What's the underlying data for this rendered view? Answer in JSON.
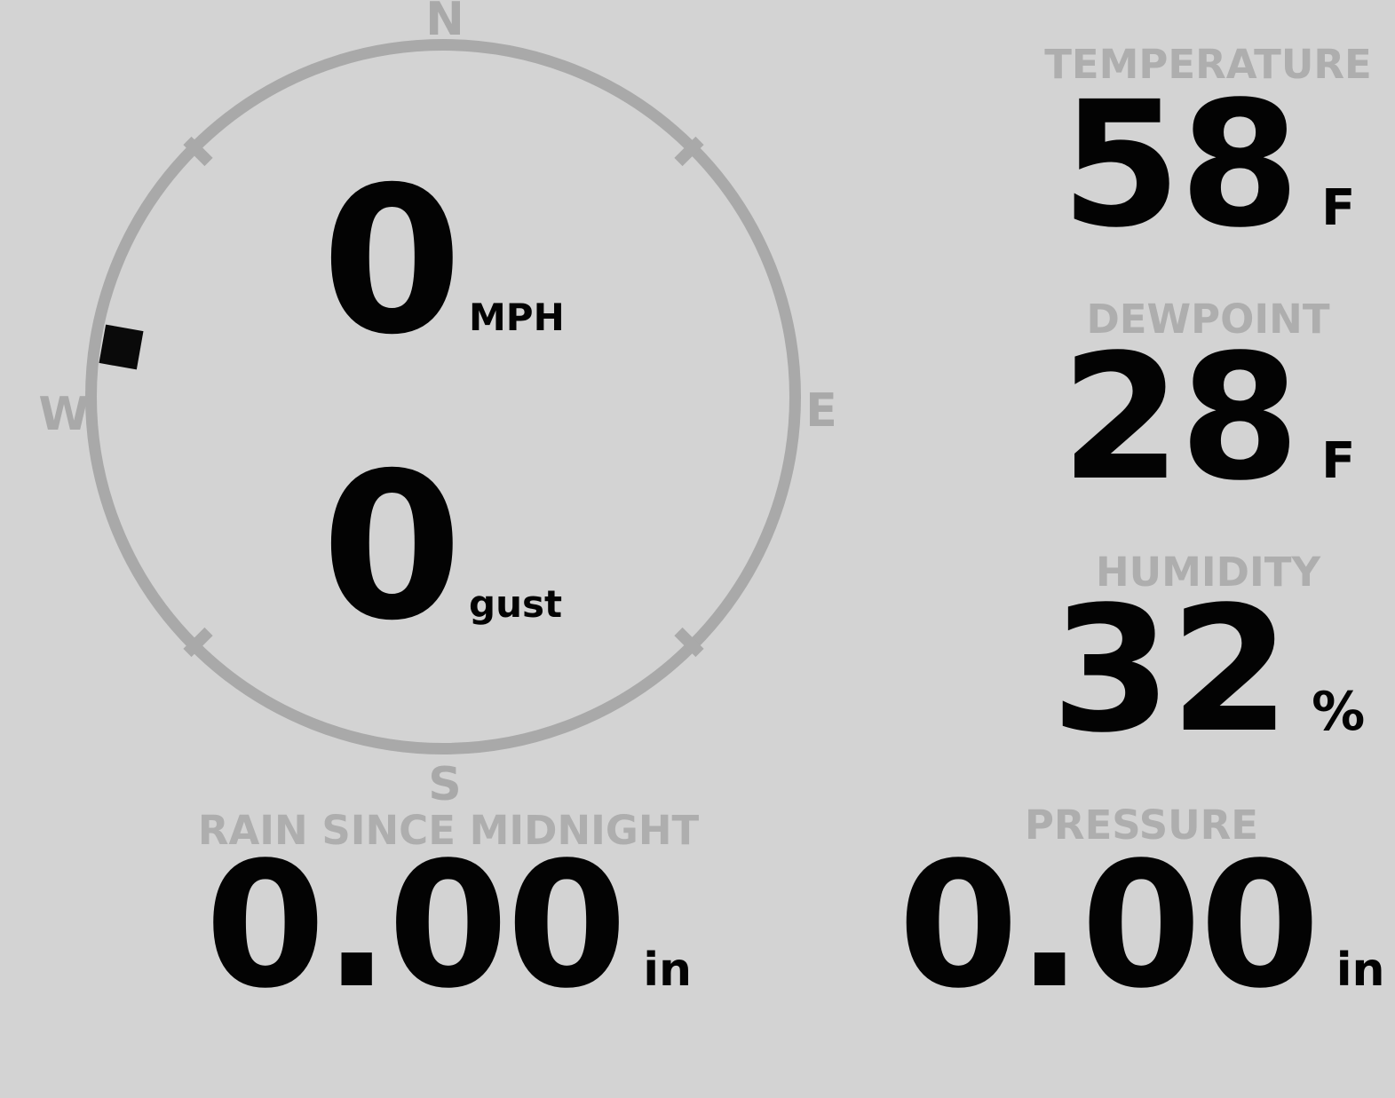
{
  "theme": {
    "background": "#d3d3d3",
    "compass_gray": "#a9a9a9",
    "label_gray": "#aeaeae",
    "value_black": "#030303"
  },
  "compass": {
    "directions": {
      "north": "N",
      "east": "E",
      "south": "S",
      "west": "W"
    },
    "wind_speed": {
      "value": "0",
      "unit": "MPH"
    },
    "wind_gust": {
      "value": "0",
      "unit": "gust"
    },
    "marker": {
      "shape": "black-square",
      "bearing_deg": 279
    }
  },
  "metrics": {
    "temperature": {
      "label": "TEMPERATURE",
      "value": "58",
      "unit": "F"
    },
    "dewpoint": {
      "label": "DEWPOINT",
      "value": "28",
      "unit": "F"
    },
    "humidity": {
      "label": "HUMIDITY",
      "value": "32",
      "unit": "%"
    },
    "rain_since_midnight": {
      "label": "RAIN SINCE MIDNIGHT",
      "value": "0.00",
      "unit": "in"
    },
    "pressure": {
      "label": "PRESSURE",
      "value": "0.00",
      "unit": "in"
    }
  }
}
